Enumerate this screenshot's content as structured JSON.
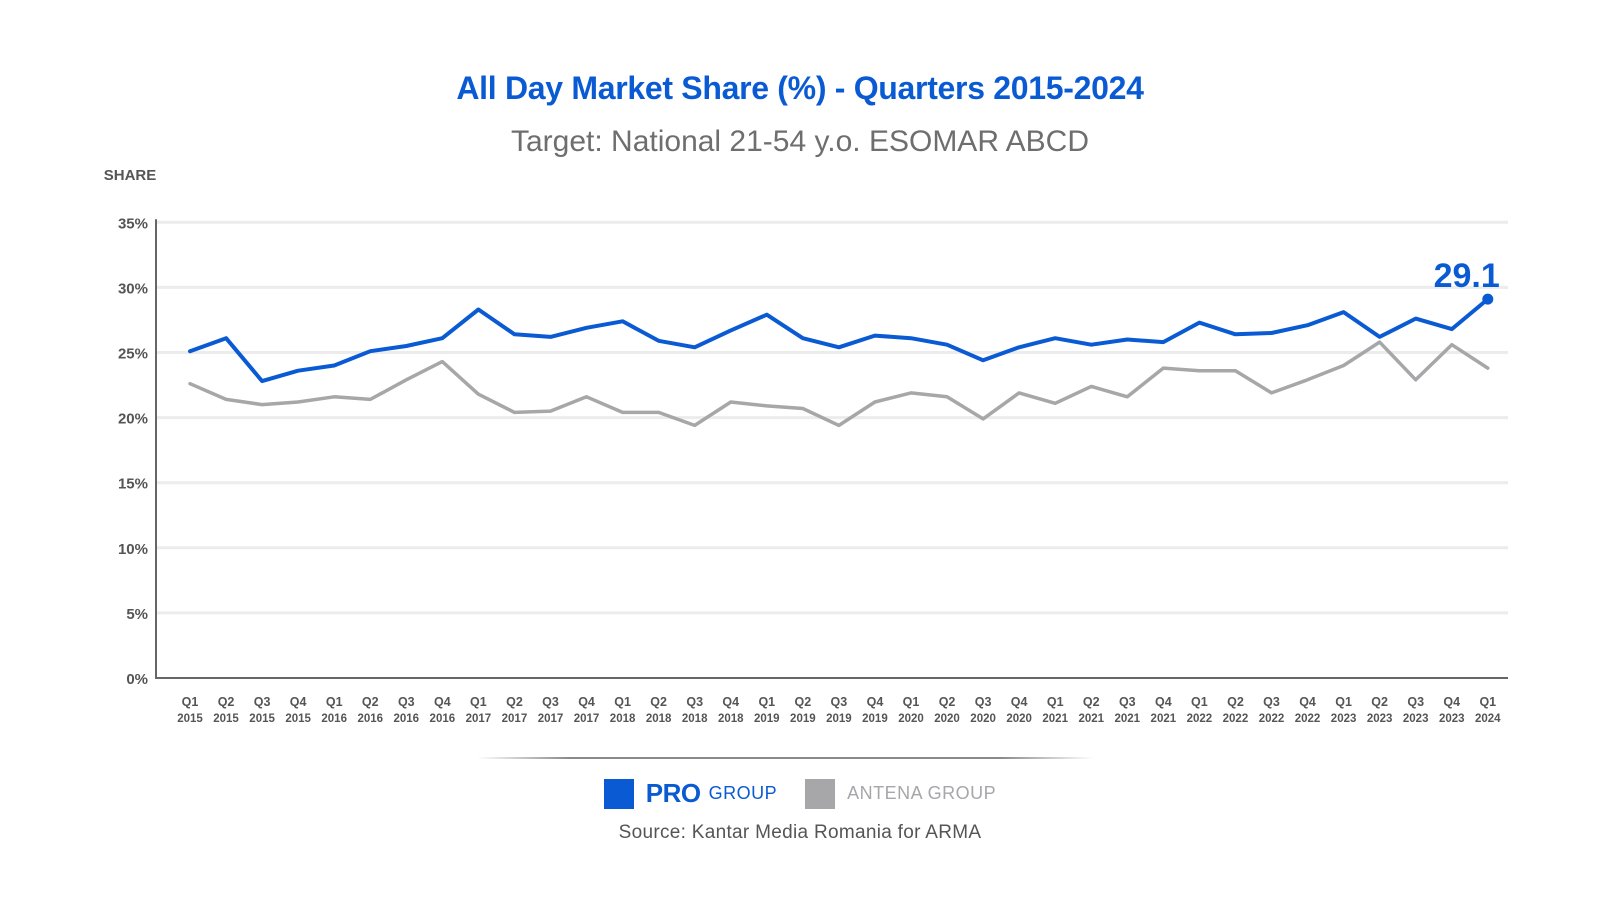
{
  "chart_data": {
    "type": "line",
    "title": "All Day Market Share (%) - Quarters 2015-2024",
    "subtitle": "Target: National 21-54 y.o. ESOMAR ABCD",
    "ylabel": "SHARE",
    "ylim": [
      0,
      35
    ],
    "yticks": [
      "0%",
      "5%",
      "10%",
      "15%",
      "20%",
      "25%",
      "30%",
      "35%"
    ],
    "categories": [
      [
        "Q1",
        "2015"
      ],
      [
        "Q2",
        "2015"
      ],
      [
        "Q3",
        "2015"
      ],
      [
        "Q4",
        "2015"
      ],
      [
        "Q1",
        "2016"
      ],
      [
        "Q2",
        "2016"
      ],
      [
        "Q3",
        "2016"
      ],
      [
        "Q4",
        "2016"
      ],
      [
        "Q1",
        "2017"
      ],
      [
        "Q2",
        "2017"
      ],
      [
        "Q3",
        "2017"
      ],
      [
        "Q4",
        "2017"
      ],
      [
        "Q1",
        "2018"
      ],
      [
        "Q2",
        "2018"
      ],
      [
        "Q3",
        "2018"
      ],
      [
        "Q4",
        "2018"
      ],
      [
        "Q1",
        "2019"
      ],
      [
        "Q2",
        "2019"
      ],
      [
        "Q3",
        "2019"
      ],
      [
        "Q4",
        "2019"
      ],
      [
        "Q1",
        "2020"
      ],
      [
        "Q2",
        "2020"
      ],
      [
        "Q3",
        "2020"
      ],
      [
        "Q4",
        "2020"
      ],
      [
        "Q1",
        "2021"
      ],
      [
        "Q2",
        "2021"
      ],
      [
        "Q3",
        "2021"
      ],
      [
        "Q4",
        "2021"
      ],
      [
        "Q1",
        "2022"
      ],
      [
        "Q2",
        "2022"
      ],
      [
        "Q3",
        "2022"
      ],
      [
        "Q4",
        "2022"
      ],
      [
        "Q1",
        "2023"
      ],
      [
        "Q2",
        "2023"
      ],
      [
        "Q3",
        "2023"
      ],
      [
        "Q4",
        "2023"
      ],
      [
        "Q1",
        "2024"
      ]
    ],
    "series": [
      {
        "name": "PRO GROUP",
        "color": "#0a5bd3",
        "values": [
          25.1,
          26.1,
          22.8,
          23.6,
          24.0,
          25.1,
          25.5,
          26.1,
          28.3,
          26.4,
          26.2,
          26.9,
          27.4,
          25.9,
          25.4,
          26.7,
          27.9,
          26.1,
          25.4,
          26.3,
          26.1,
          25.6,
          24.4,
          25.4,
          26.1,
          25.6,
          26.0,
          25.8,
          27.3,
          26.4,
          26.5,
          27.1,
          28.1,
          26.2,
          27.6,
          26.8,
          29.1
        ]
      },
      {
        "name": "ANTENA GROUP",
        "color": "#a7a7aa",
        "values": [
          22.6,
          21.4,
          21.0,
          21.2,
          21.6,
          21.4,
          22.9,
          24.3,
          21.8,
          20.4,
          20.5,
          21.6,
          20.4,
          20.4,
          19.4,
          21.2,
          20.9,
          20.7,
          19.4,
          21.2,
          21.9,
          21.6,
          19.9,
          21.9,
          21.1,
          22.4,
          21.6,
          23.8,
          23.6,
          23.6,
          21.9,
          22.9,
          24.0,
          25.8,
          22.9,
          25.6,
          23.8
        ]
      }
    ],
    "annotations": [
      {
        "series": "PRO GROUP",
        "index": 36,
        "text": "29.1"
      }
    ]
  },
  "legend": {
    "pro_strong": "PRO",
    "pro_label": "GROUP",
    "antena_label": "ANTENA GROUP"
  },
  "source": "Source: Kantar Media Romania for ARMA"
}
